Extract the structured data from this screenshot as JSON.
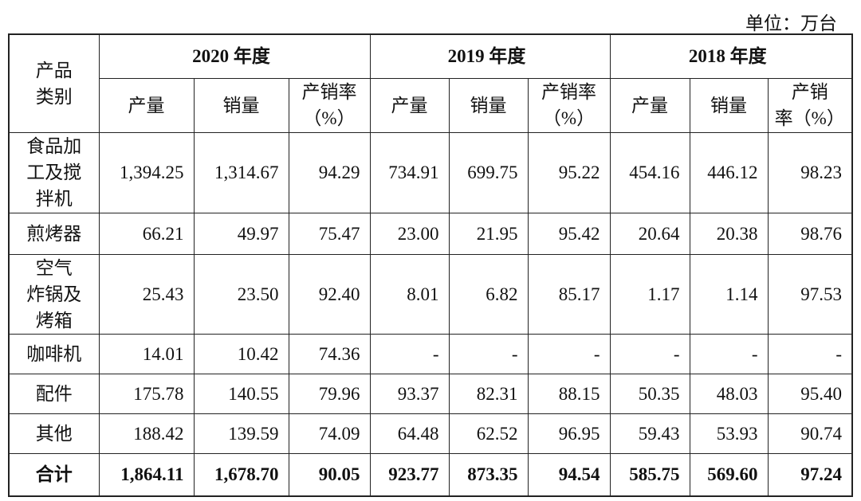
{
  "unit": "单位：万台",
  "table": {
    "corner": "产品\n类别",
    "years": [
      "2020 年度",
      "2019 年度",
      "2018 年度"
    ],
    "columns": [
      "产量",
      "销量",
      "产销率\n（%）",
      "产量",
      "销量",
      "产销率\n（%）",
      "产量",
      "销量",
      "产销\n率（%）"
    ],
    "rows": [
      [
        "食品加\n工及搅\n拌机",
        "1,394.25",
        "1,314.67",
        "94.29",
        "734.91",
        "699.75",
        "95.22",
        "454.16",
        "446.12",
        "98.23"
      ],
      [
        "煎烤器",
        "66.21",
        "49.97",
        "75.47",
        "23.00",
        "21.95",
        "95.42",
        "20.64",
        "20.38",
        "98.76"
      ],
      [
        "空气\n炸锅及\n烤箱",
        "25.43",
        "23.50",
        "92.40",
        "8.01",
        "6.82",
        "85.17",
        "1.17",
        "1.14",
        "97.53"
      ],
      [
        "咖啡机",
        "14.01",
        "10.42",
        "74.36",
        "-",
        "-",
        "-",
        "-",
        "-",
        "-"
      ],
      [
        "配件",
        "175.78",
        "140.55",
        "79.96",
        "93.37",
        "82.31",
        "88.15",
        "50.35",
        "48.03",
        "95.40"
      ],
      [
        "其他",
        "188.42",
        "139.59",
        "74.09",
        "64.48",
        "62.52",
        "96.95",
        "59.43",
        "53.93",
        "90.74"
      ],
      [
        "合计",
        "1,864.11",
        "1,678.70",
        "90.05",
        "923.77",
        "873.35",
        "94.54",
        "585.75",
        "569.60",
        "97.24"
      ]
    ]
  }
}
